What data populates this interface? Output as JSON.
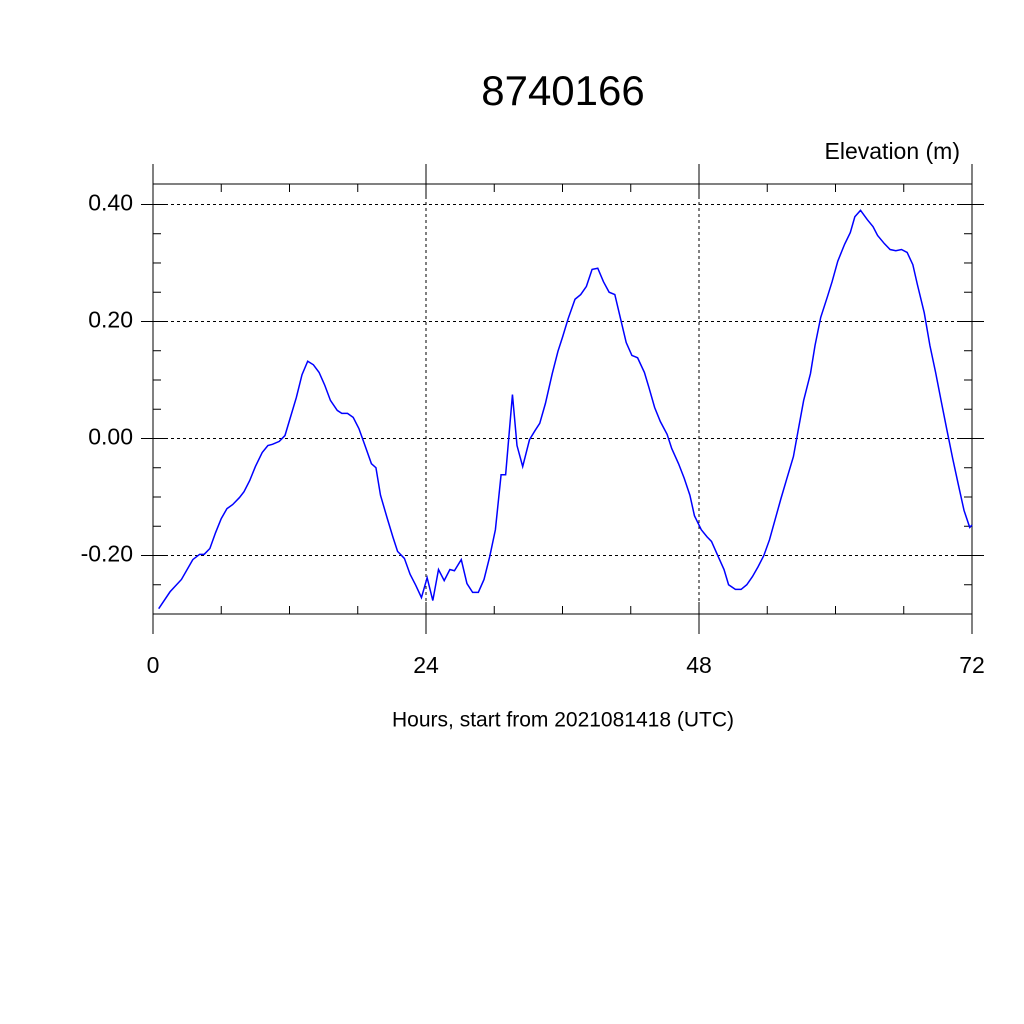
{
  "chart_data": {
    "type": "line",
    "title": "8740166",
    "subtitle": "Elevation (m)",
    "x_label": "Hours, start from 2021081418 (UTC)",
    "color": "#0000ff",
    "grid": true,
    "xlim": [
      0,
      72
    ],
    "ylim": [
      -0.3,
      0.435
    ],
    "xticks": [
      0,
      24,
      48,
      72
    ],
    "xminorticks": [
      6,
      12,
      18,
      30,
      36,
      42,
      54,
      60,
      66
    ],
    "yticks": [
      {
        "value": -0.2,
        "label": "-0.20"
      },
      {
        "value": 0,
        "label": "0.00"
      },
      {
        "value": 0.2,
        "label": "0.20"
      },
      {
        "value": 0.4,
        "label": "0.40"
      }
    ],
    "yminorticks": [
      -0.25,
      -0.15,
      -0.1,
      -0.05,
      0.05,
      0.1,
      0.15,
      0.25,
      0.3,
      0.35
    ],
    "x": [
      0.5,
      1.5,
      2.5,
      3.5,
      4.1,
      4.5,
      5,
      5.5,
      6,
      6.5,
      7,
      7.6,
      8,
      8.5,
      9,
      9.6,
      10.1,
      10.5,
      11.1,
      11.6,
      12,
      12.6,
      13.1,
      13.6,
      14.1,
      14.6,
      15.1,
      15.6,
      16.2,
      16.6,
      17.1,
      17.6,
      18.1,
      18.6,
      19.2,
      19.6,
      20,
      20.6,
      21.1,
      21.5,
      22.1,
      22.6,
      23.1,
      23.6,
      24.1,
      24.6,
      25.1,
      25.6,
      26.1,
      26.5,
      27.1,
      27.6,
      28.1,
      28.6,
      29.1,
      29.6,
      30.1,
      30.6,
      31,
      31.6,
      32,
      32.5,
      33.1,
      33.6,
      34,
      34.5,
      35.1,
      35.6,
      36,
      36.5,
      37.1,
      37.6,
      38.1,
      38.6,
      39.1,
      39.6,
      40.1,
      40.6,
      41.1,
      41.6,
      42.1,
      42.6,
      43.2,
      43.6,
      44.1,
      44.6,
      45.2,
      45.6,
      46.2,
      46.7,
      47.2,
      47.6,
      48.2,
      48.7,
      49.1,
      49.6,
      50.2,
      50.6,
      51.2,
      51.7,
      52.2,
      52.7,
      53.2,
      53.7,
      54.2,
      54.7,
      55.2,
      55.7,
      56.3,
      56.7,
      57.2,
      57.8,
      58.2,
      58.7,
      59.3,
      59.7,
      60.2,
      60.8,
      61.3,
      61.7,
      62.2,
      62.8,
      63.3,
      63.7,
      64.3,
      64.8,
      65.3,
      65.8,
      66.3,
      66.8,
      67.2,
      67.8,
      68.3,
      68.8,
      69.3,
      69.8,
      70.3,
      70.8,
      71.3,
      71.8,
      72
    ],
    "values": [
      -0.291,
      -0.262,
      -0.241,
      -0.207,
      -0.198,
      -0.198,
      -0.188,
      -0.161,
      -0.137,
      -0.12,
      -0.113,
      -0.101,
      -0.091,
      -0.072,
      -0.048,
      -0.024,
      -0.012,
      -0.01,
      -0.005,
      0.005,
      0.031,
      0.07,
      0.109,
      0.132,
      0.126,
      0.113,
      0.091,
      0.065,
      0.048,
      0.043,
      0.043,
      0.036,
      0.017,
      -0.01,
      -0.043,
      -0.05,
      -0.097,
      -0.137,
      -0.169,
      -0.193,
      -0.205,
      -0.232,
      -0.251,
      -0.272,
      -0.238,
      -0.277,
      -0.224,
      -0.243,
      -0.224,
      -0.226,
      -0.207,
      -0.248,
      -0.263,
      -0.263,
      -0.241,
      -0.202,
      -0.156,
      -0.062,
      -0.062,
      0.075,
      -0.012,
      -0.048,
      -0.002,
      0.014,
      0.026,
      0.06,
      0.111,
      0.149,
      0.173,
      0.205,
      0.238,
      0.246,
      0.26,
      0.289,
      0.291,
      0.268,
      0.25,
      0.246,
      0.205,
      0.164,
      0.142,
      0.138,
      0.113,
      0.087,
      0.053,
      0.029,
      0.007,
      -0.017,
      -0.043,
      -0.068,
      -0.097,
      -0.132,
      -0.156,
      -0.168,
      -0.176,
      -0.198,
      -0.224,
      -0.25,
      -0.258,
      -0.258,
      -0.25,
      -0.236,
      -0.219,
      -0.2,
      -0.173,
      -0.138,
      -0.103,
      -0.07,
      -0.031,
      0.012,
      0.065,
      0.111,
      0.159,
      0.207,
      0.243,
      0.268,
      0.303,
      0.332,
      0.352,
      0.379,
      0.39,
      0.374,
      0.362,
      0.347,
      0.333,
      0.323,
      0.321,
      0.323,
      0.318,
      0.297,
      0.263,
      0.215,
      0.159,
      0.113,
      0.063,
      0.014,
      -0.034,
      -0.079,
      -0.123,
      -0.152,
      -0.148
    ]
  }
}
